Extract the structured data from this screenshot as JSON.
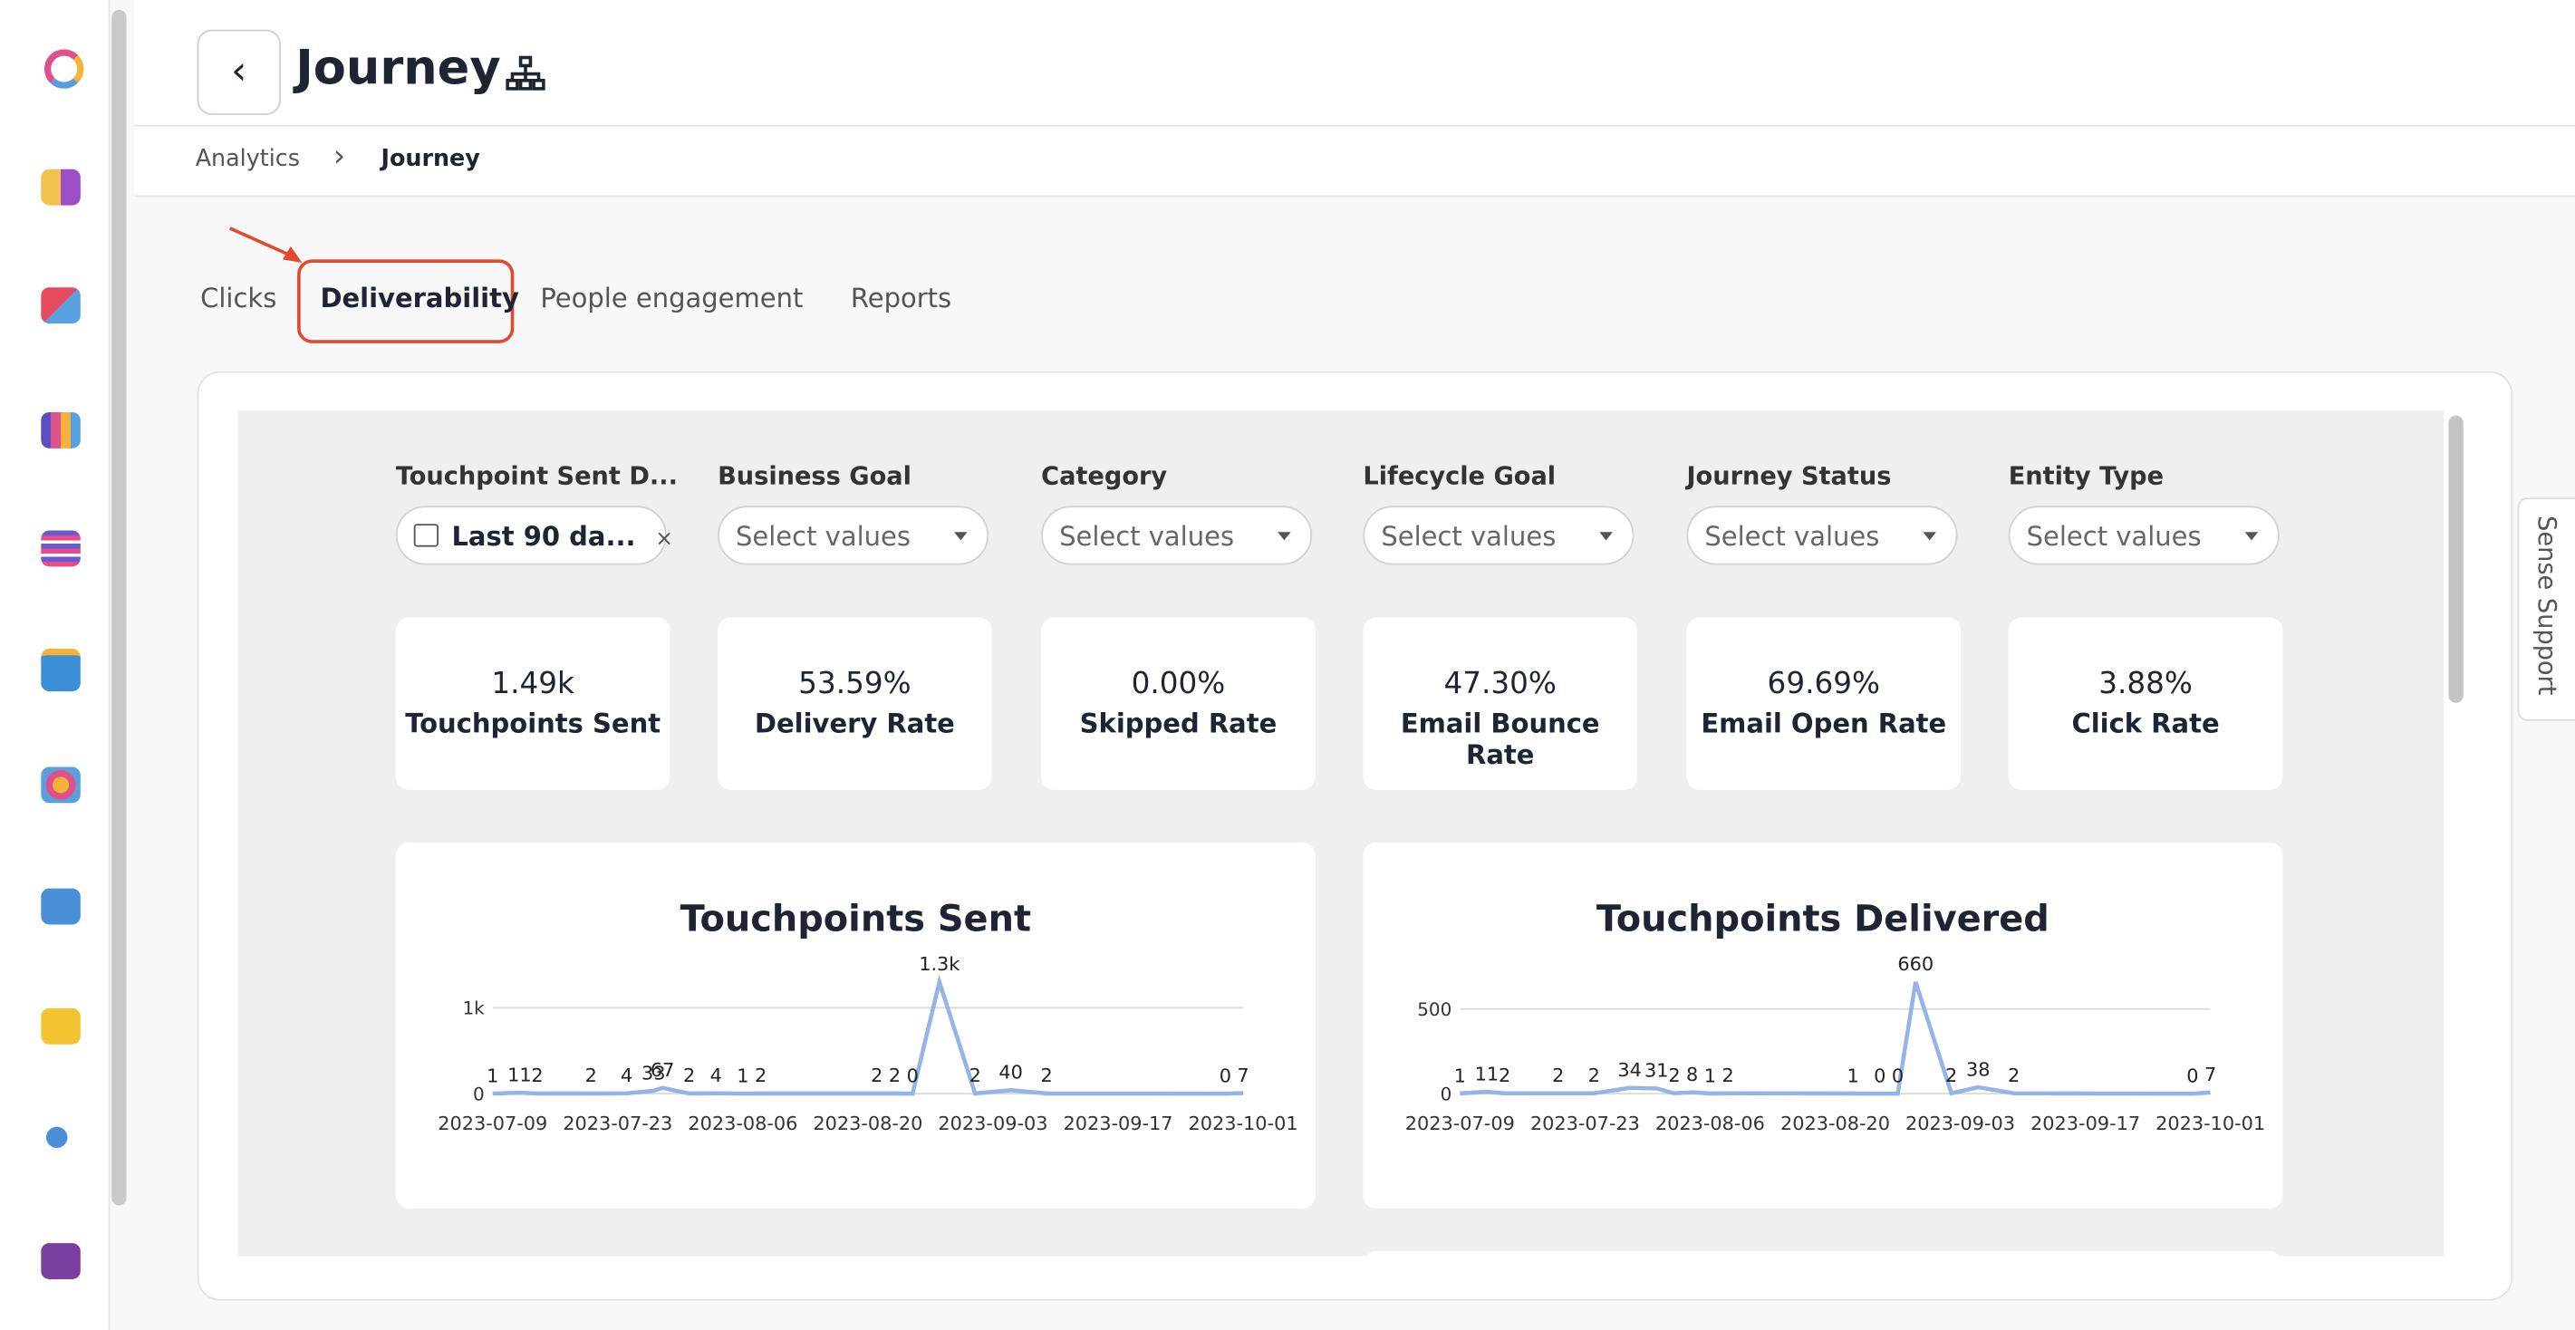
{
  "header": {
    "title": "Journey"
  },
  "breadcrumb": [
    "Analytics",
    "Journey"
  ],
  "tabs": [
    "Clicks",
    "Deliverability",
    "People engagement",
    "Reports"
  ],
  "active_tab": 1,
  "filters": [
    {
      "label": "Touchpoint Sent D...",
      "value": "Last 90 da..."
    },
    {
      "label": "Business Goal",
      "placeholder": "Select values"
    },
    {
      "label": "Category",
      "placeholder": "Select values"
    },
    {
      "label": "Lifecycle Goal",
      "placeholder": "Select values"
    },
    {
      "label": "Journey Status",
      "placeholder": "Select values"
    },
    {
      "label": "Entity Type",
      "placeholder": "Select values"
    }
  ],
  "kpis": [
    {
      "value": "1.49k",
      "label": "Touchpoints Sent"
    },
    {
      "value": "53.59%",
      "label": "Delivery Rate"
    },
    {
      "value": "0.00%",
      "label": "Skipped Rate"
    },
    {
      "value": "47.30%",
      "label": "Email Bounce Rate"
    },
    {
      "value": "69.69%",
      "label": "Email Open Rate"
    },
    {
      "value": "3.88%",
      "label": "Click Rate"
    }
  ],
  "support": "Sense Support",
  "charts": [
    {
      "type": "line",
      "title": "Touchpoints Sent",
      "color": "#93b4e8",
      "x": [
        "2023-07-09",
        "2023-07-12",
        "2023-07-14",
        "2023-07-20",
        "2023-07-24",
        "2023-07-27",
        "2023-07-28",
        "2023-07-31",
        "2023-08-03",
        "2023-08-06",
        "2023-08-08",
        "2023-08-21",
        "2023-08-23",
        "2023-08-25",
        "2023-08-28",
        "2023-09-01",
        "2023-09-05",
        "2023-09-09",
        "2023-09-29",
        "2023-10-01"
      ],
      "values": [
        1,
        11,
        2,
        2,
        4,
        33,
        67,
        2,
        4,
        1,
        2,
        2,
        2,
        0,
        1300,
        2,
        40,
        2,
        0,
        7
      ],
      "value_labels": [
        "1",
        "11",
        "2",
        "2",
        "4",
        "33",
        "67",
        "2",
        "4",
        "1",
        "2",
        "2",
        "2",
        "0",
        "1.3k",
        "2",
        "40",
        "2",
        "0",
        "7"
      ],
      "xlim": [
        "2023-07-09",
        "2023-10-01"
      ],
      "xticks": [
        "2023-07-09",
        "2023-07-23",
        "2023-08-06",
        "2023-08-20",
        "2023-09-03",
        "2023-09-17",
        "2023-10-01"
      ],
      "ylim": [
        0,
        1300
      ],
      "yticks": [
        0,
        {
          "value": 1000,
          "label": "1k"
        }
      ]
    },
    {
      "type": "line",
      "title": "Touchpoints Delivered",
      "color": "#93b4e8",
      "x": [
        "2023-07-09",
        "2023-07-12",
        "2023-07-14",
        "2023-07-20",
        "2023-07-24",
        "2023-07-28",
        "2023-07-31",
        "2023-08-02",
        "2023-08-04",
        "2023-08-06",
        "2023-08-08",
        "2023-08-22",
        "2023-08-25",
        "2023-08-27",
        "2023-08-29",
        "2023-09-02",
        "2023-09-05",
        "2023-09-09",
        "2023-09-29",
        "2023-10-01"
      ],
      "values": [
        1,
        11,
        2,
        2,
        2,
        34,
        31,
        2,
        8,
        1,
        2,
        1,
        0,
        0,
        660,
        2,
        38,
        2,
        0,
        7
      ],
      "xlim": [
        "2023-07-09",
        "2023-10-01"
      ],
      "xticks": [
        "2023-07-09",
        "2023-07-23",
        "2023-08-06",
        "2023-08-20",
        "2023-09-03",
        "2023-09-17",
        "2023-10-01"
      ],
      "ylim": [
        0,
        660
      ],
      "yticks": [
        0,
        500
      ]
    }
  ]
}
